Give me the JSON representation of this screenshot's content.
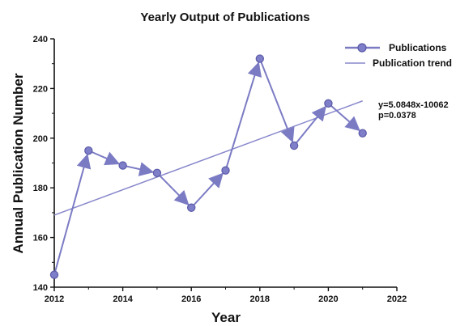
{
  "chart_data": {
    "type": "line",
    "title": "Yearly Output of Publications",
    "xlabel": "Year",
    "ylabel": "Annual Publication Number",
    "xlim": [
      2012,
      2022
    ],
    "ylim": [
      140,
      240
    ],
    "x_ticks": [
      "2012",
      "2014",
      "2016",
      "2018",
      "2020",
      "2022"
    ],
    "y_ticks": [
      "140",
      "160",
      "180",
      "200",
      "220",
      "240"
    ],
    "grid": false,
    "legend_position": "top-right",
    "series": [
      {
        "name": "Publications",
        "style": "line-with-circle-markers-and-arrows",
        "color": "#7b7bc4",
        "x": [
          2012,
          2013,
          2014,
          2015,
          2016,
          2017,
          2018,
          2019,
          2020,
          2021
        ],
        "y": [
          145,
          195,
          189,
          186,
          172,
          187,
          232,
          197,
          214,
          202
        ]
      },
      {
        "name": "Publication trend",
        "style": "line",
        "color": "#8888cc",
        "x": [
          2012,
          2021
        ],
        "y": [
          169,
          215
        ]
      }
    ],
    "annotations": [
      "y=5.0848x-10062",
      "p=0.0378"
    ]
  },
  "colors": {
    "series_line": "#7b7bc4",
    "series_marker_fill": "#7f7fc9",
    "series_marker_stroke": "#5a5aa8",
    "trend_line": "#8888cc",
    "axis": "#111111"
  }
}
